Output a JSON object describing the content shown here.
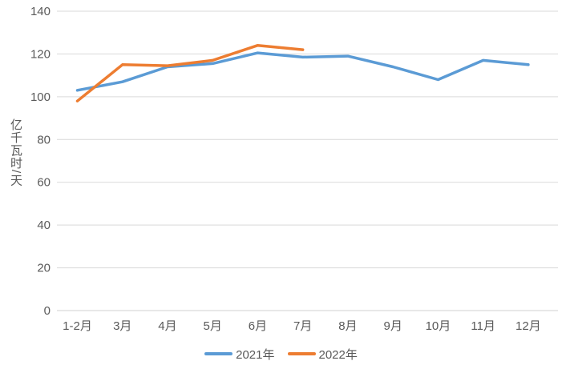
{
  "chart_data": {
    "type": "line",
    "title": "",
    "ylabel": "亿千瓦时/天",
    "xlabel": "",
    "categories": [
      "1-2月",
      "3月",
      "4月",
      "5月",
      "6月",
      "7月",
      "8月",
      "9月",
      "10月",
      "11月",
      "12月"
    ],
    "series": [
      {
        "name": "2021年",
        "color": "#5B9BD5",
        "values": [
          103,
          107,
          114,
          115.5,
          120.5,
          118.5,
          119,
          114,
          108,
          117,
          115
        ]
      },
      {
        "name": "2022年",
        "color": "#ED7D31",
        "values": [
          98,
          115,
          114.5,
          117,
          124,
          122
        ]
      }
    ],
    "ylim": [
      0,
      140
    ],
    "ytick_step": 20,
    "yticks": [
      0,
      20,
      40,
      60,
      80,
      100,
      120,
      140
    ],
    "grid": true,
    "legend_position": "bottom",
    "colors": {
      "grid_line": "#D9D9D9",
      "axis_line": "#D0D0D0",
      "tick_text": "#595959"
    }
  }
}
